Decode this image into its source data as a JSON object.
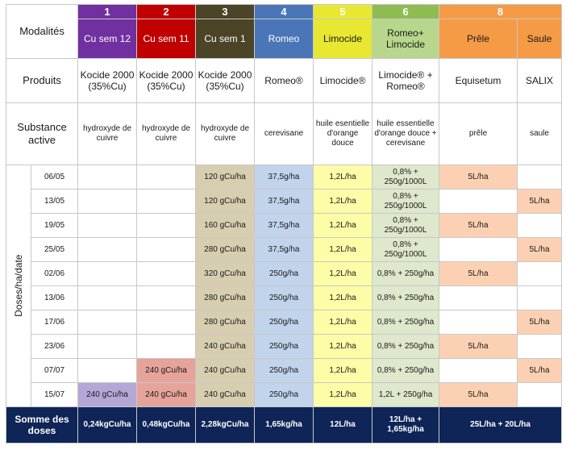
{
  "header": {
    "modalites_label": "Modalités",
    "produits_label": "Produits",
    "substance_label": "Substance active",
    "doses_axis_label": "Doses/ha/date",
    "somme_label": "Somme des doses"
  },
  "columns": [
    {
      "num": "1",
      "name": "Cu sem 12",
      "product": "Kocide 2000 (35%Cu)",
      "substance": "hydroxyde de cuivre",
      "total": "0,24kgCu/ha",
      "num_color": "#7030a0",
      "name_color": "#7030a0",
      "cell_color": "#b4a7d6"
    },
    {
      "num": "2",
      "name": "Cu sem 11",
      "product": "Kocide 2000 (35%Cu)",
      "substance": "hydroxyde de cuivre",
      "total": "0,48kgCu/ha",
      "num_color": "#c00000",
      "name_color": "#c00000",
      "cell_color": "#e6a39a"
    },
    {
      "num": "3",
      "name": "Cu sem 1",
      "product": "Kocide 2000 (35%Cu)",
      "substance": "hydroxyde de cuivre",
      "total": "2,28kgCu/ha",
      "num_color": "#4b4426",
      "name_color": "#4b4426",
      "cell_color": "#d7ceb0"
    },
    {
      "num": "4",
      "name": "Romeo",
      "product": "Romeo®",
      "substance": "cerevisane",
      "total": "1,65kg/ha",
      "num_color": "#4a76b8",
      "name_color": "#4a76b8",
      "cell_color": "#c2d4ec"
    },
    {
      "num": "5",
      "name": "Limocide",
      "product": "Limocide®",
      "substance": "huile esentielle d'orange douce",
      "total": "12L/ha",
      "num_color": "#e8e832",
      "name_color": "#e8e832",
      "cell_color": "#fdfca7"
    },
    {
      "num": "6",
      "name": "Romeo+ Limocide",
      "product": "Limocide® + Romeo®",
      "substance": "huile essentielle d'orange douce + cerevisane",
      "total": "12L/ha + 1,65kg/ha",
      "num_color": "#8fbc52",
      "name_color": "#b8d78c",
      "cell_color": "#dde8cc"
    },
    {
      "num": "8",
      "name": "Prêle",
      "product": "Equisetum",
      "substance": "prêle",
      "total": "25L/ha + 20L/ha",
      "num_color": "#f59a45",
      "name_color": "#f59a45",
      "cell_color": "#fcd1b3"
    },
    {
      "num": "",
      "name": "Saule",
      "product": "SALIX",
      "substance": "saule",
      "total": "",
      "num_color": "#f59a45",
      "name_color": "#f59a45",
      "cell_color": "#fcd1b3"
    }
  ],
  "rows": [
    {
      "date": "06/05",
      "cells": [
        "",
        "",
        "120 gCu/ha",
        "37,5g/ha",
        "1,2L/ha",
        "0,8% + 250g/1000L",
        "5L/ha",
        ""
      ]
    },
    {
      "date": "13/05",
      "cells": [
        "",
        "",
        "120 gCu/ha",
        "37,5g/ha",
        "1,2L/ha",
        "0,8% + 250g/1000L",
        "",
        "5L/ha"
      ]
    },
    {
      "date": "19/05",
      "cells": [
        "",
        "",
        "160 gCu/ha",
        "37,5g/ha",
        "1,2L/ha",
        "0,8% + 250g/1000L",
        "5L/ha",
        ""
      ]
    },
    {
      "date": "25/05",
      "cells": [
        "",
        "",
        "280 gCu/ha",
        "37,5g/ha",
        "1,2L/ha",
        "0,8% + 250g/1000L",
        "",
        "5L/ha"
      ]
    },
    {
      "date": "02/06",
      "cells": [
        "",
        "",
        "320 gCu/ha",
        "250g/ha",
        "1,2L/ha",
        "0,8% + 250g/ha",
        "5L/ha",
        ""
      ]
    },
    {
      "date": "13/06",
      "cells": [
        "",
        "",
        "280 gCu/ha",
        "250g/ha",
        "1,2L/ha",
        "0,8% + 250g/ha",
        "",
        ""
      ]
    },
    {
      "date": "17/06",
      "cells": [
        "",
        "",
        "280 gCu/ha",
        "250g/ha",
        "1,2L/ha",
        "0,8% + 250g/ha",
        "",
        "5L/ha"
      ]
    },
    {
      "date": "23/06",
      "cells": [
        "",
        "",
        "240 gCu/ha",
        "250g/ha",
        "1,2L/ha",
        "0,8% + 250g/ha",
        "5L/ha",
        ""
      ]
    },
    {
      "date": "07/07",
      "cells": [
        "",
        "240 gCu/ha",
        "240 gCu/ha",
        "250g/ha",
        "1,2L/ha",
        "0,8% + 250g/ha",
        "",
        "5L/ha"
      ]
    },
    {
      "date": "15/07",
      "cells": [
        "240 gCu/ha",
        "240 gCu/ha",
        "240 gCu/ha",
        "250g/ha",
        "1,2L/ha",
        "1,2L + 250g/ha",
        "5L/ha",
        ""
      ]
    }
  ]
}
